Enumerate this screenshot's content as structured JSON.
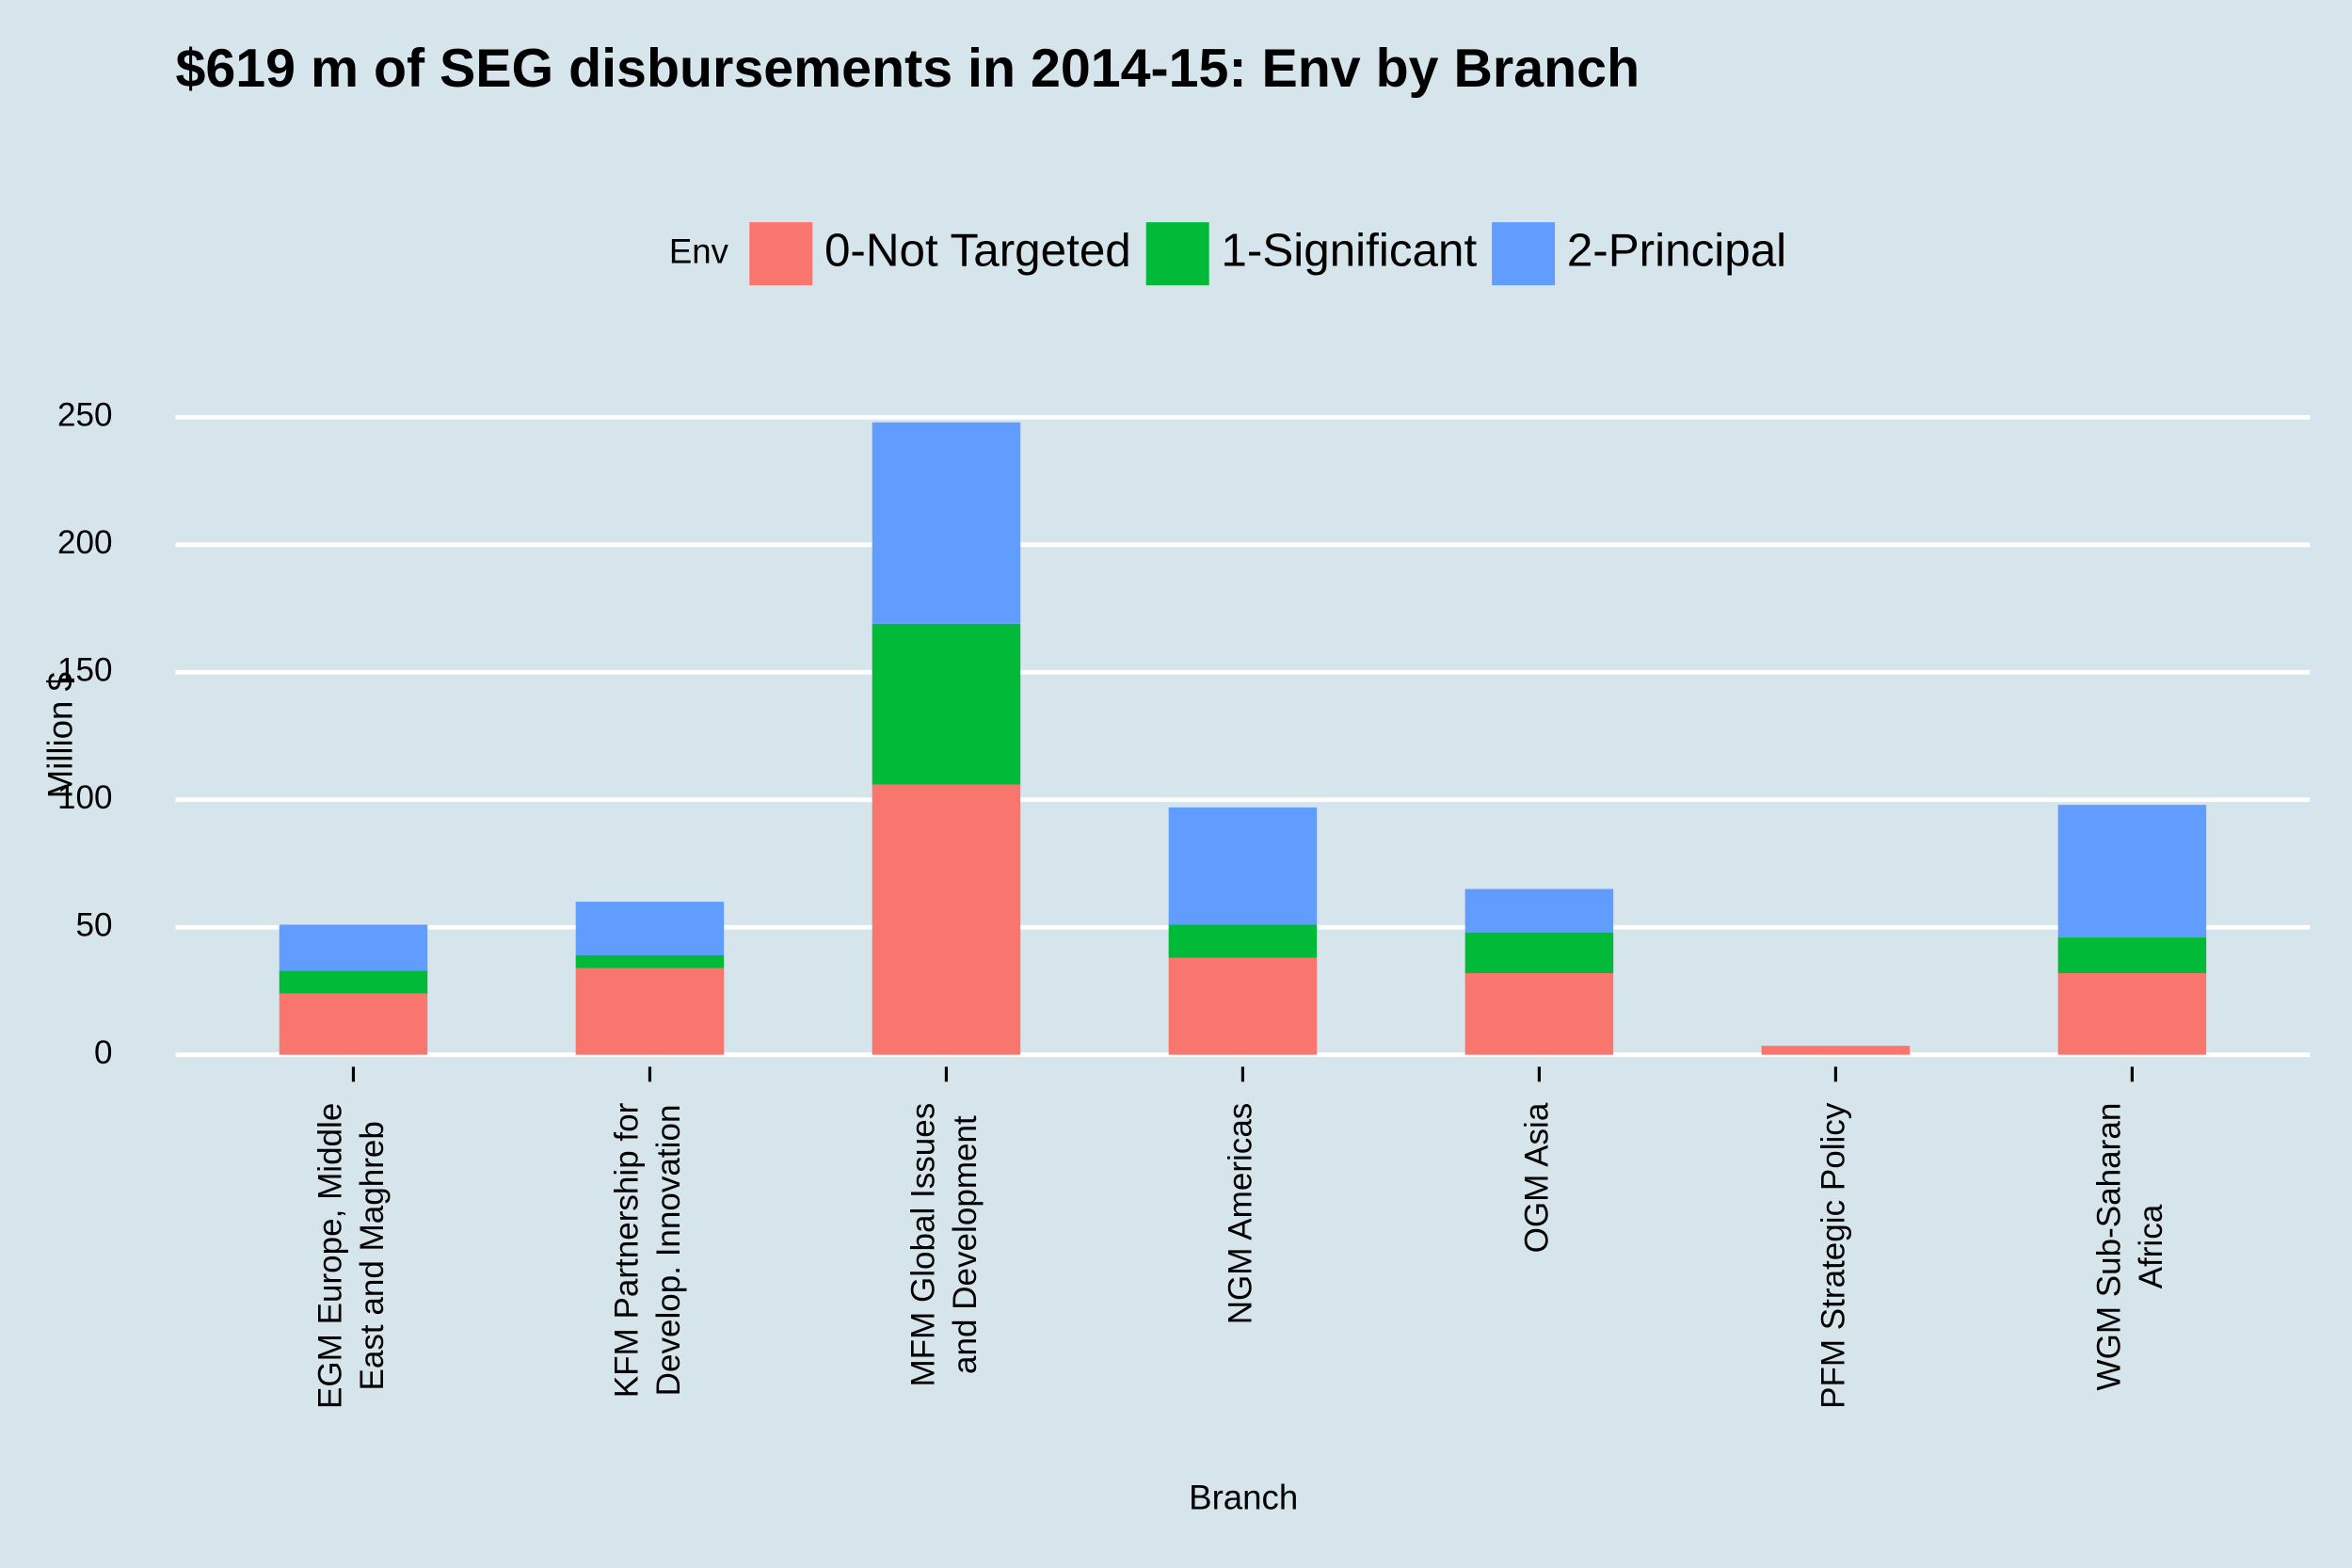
{
  "chart_data": {
    "type": "stacked_bar",
    "title": "$619 m of SEG disbursements in 2014-15: Env by Branch",
    "x_label": "Branch",
    "y_label": "Million $",
    "legend_title": "Env",
    "legend_position": "top",
    "grid": true,
    "categories": [
      [
        "EGM Europe, Middle",
        "East and Maghreb"
      ],
      [
        "KFM Partnership for",
        "Develop. Innovation"
      ],
      [
        "MFM Global Issues",
        "and Development"
      ],
      [
        "NGM Americas"
      ],
      [
        "OGM Asia"
      ],
      [
        "PFM Strategic Policy"
      ],
      [
        "WGM Sub-Saharan",
        "Africa"
      ]
    ],
    "series": [
      {
        "name": "0-Not Targeted",
        "color": "#f8766d",
        "values": [
          24,
          34,
          106,
          38,
          32,
          3.5,
          32
        ]
      },
      {
        "name": "1-Significant",
        "color": "#00ba38",
        "values": [
          9,
          5,
          63,
          13,
          16,
          0,
          14
        ]
      },
      {
        "name": "2-Principal",
        "color": "#619cff",
        "values": [
          18,
          21,
          79,
          46,
          17,
          0,
          52
        ]
      }
    ],
    "ylim": [
      0,
      250
    ],
    "yticks": [
      0,
      50,
      100,
      150,
      200,
      250
    ]
  }
}
